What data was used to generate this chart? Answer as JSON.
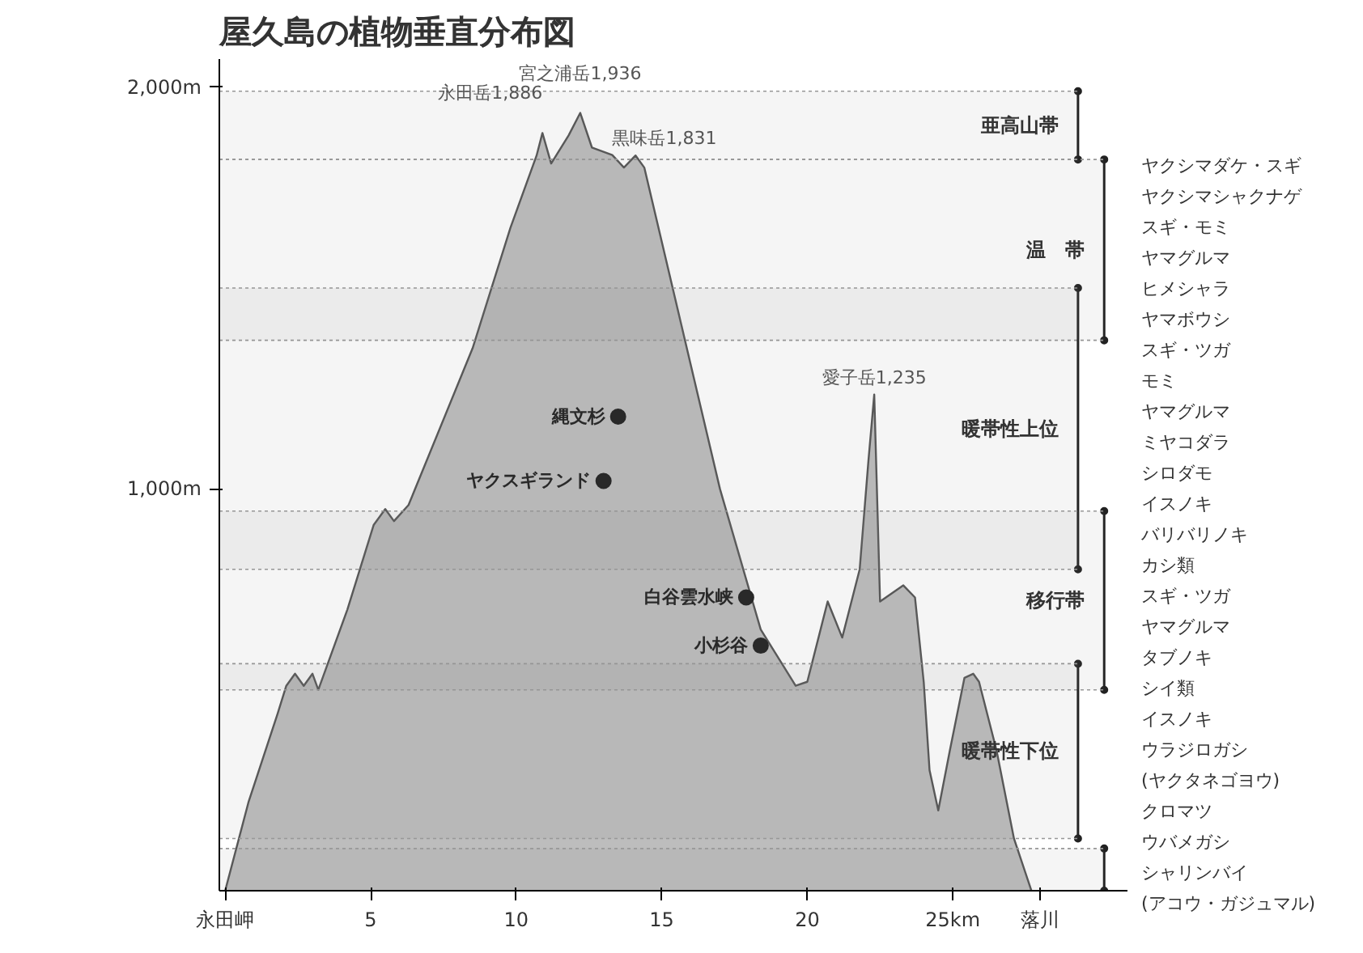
{
  "chart_data": {
    "type": "area",
    "title": "屋久島の植物垂直分布図",
    "xlim": [
      -0.2,
      31.0
    ],
    "ylim": [
      0,
      2070
    ],
    "xticks": [
      {
        "value": 0,
        "label": "永田岬"
      },
      5,
      10,
      15,
      20,
      {
        "value": 25,
        "label": "25km"
      },
      {
        "value": 28,
        "label": "落川"
      }
    ],
    "yticks": [
      {
        "value": 1000,
        "label": "1,000m"
      },
      {
        "value": 2000,
        "label": "2,000m"
      }
    ],
    "grid": false,
    "series": [
      {
        "color": "#bdbdbd",
        "x": [
          0,
          0.8,
          1.8,
          2.1,
          2.4,
          2.7,
          3.0,
          3.2,
          4.2,
          5.1,
          5.5,
          5.8,
          6.3,
          8.5,
          9.8,
          10.7,
          10.9,
          11.2,
          11.8,
          12.2,
          12.6,
          13.3,
          13.7,
          14.1,
          14.4,
          17.0,
          18.4,
          19.6,
          20.0,
          20.7,
          21.2,
          21.8,
          22.1,
          22.3,
          22.5,
          22.9,
          23.3,
          23.7,
          24.0,
          24.2,
          24.5,
          24.9,
          25.4,
          25.7,
          25.9,
          26.5,
          27.1,
          27.7
        ],
        "values": [
          0,
          220,
          440,
          510,
          540,
          510,
          540,
          500,
          700,
          910,
          950,
          920,
          960,
          1350,
          1650,
          1830,
          1886,
          1810,
          1880,
          1936,
          1850,
          1831,
          1800,
          1830,
          1800,
          1000,
          650,
          510,
          520,
          720,
          630,
          800,
          1070,
          1235,
          720,
          740,
          760,
          730,
          520,
          300,
          200,
          350,
          530,
          540,
          520,
          350,
          130,
          0
        ]
      },
      {
        "type": "scatter",
        "marker": "circle",
        "name": "縄文杉",
        "color": "#222222",
        "x": [
          13.5
        ],
        "values": [
          1180
        ]
      },
      {
        "type": "scatter",
        "marker": "circle",
        "name": "ヤクスギランド",
        "color": "#222222",
        "x": [
          13.0
        ],
        "values": [
          1020
        ]
      },
      {
        "type": "scatter",
        "marker": "circle",
        "name": "白谷雲水峡",
        "color": "#222222",
        "x": [
          17.9
        ],
        "values": [
          730
        ]
      },
      {
        "type": "scatter",
        "marker": "circle",
        "name": "小杉谷",
        "color": "#222222",
        "x": [
          18.4
        ],
        "values": [
          610
        ]
      }
    ],
    "bands": [
      {
        "axis": "y",
        "from": 1820,
        "to": 1990,
        "label": "亜高山帯"
      },
      {
        "axis": "y",
        "from": 1370,
        "to": 1820,
        "label": "温　帯"
      },
      {
        "axis": "y",
        "from": 800,
        "to": 1500,
        "label": "暖帯性上位"
      },
      {
        "axis": "y",
        "from": 500,
        "to": 945,
        "label": "移行帯"
      },
      {
        "axis": "y",
        "from": 130,
        "to": 565,
        "label": "暖帯性下位"
      },
      {
        "axis": "y",
        "from": 0,
        "to": 105
      }
    ],
    "annotations": [
      {
        "text": "永田岳1,886",
        "x": 10.9,
        "y": 1886
      },
      {
        "text": "宮之浦岳1,936",
        "x": 12.2,
        "y": 1936
      },
      {
        "text": "黒味岳1,831",
        "x": 13.3,
        "y": 1831
      },
      {
        "text": "愛子岳1,235",
        "x": 22.3,
        "y": 1235
      },
      "ヤクシマダケ・スギ",
      "ヤクシマシャクナゲ",
      "スギ・モミ",
      "ヤマグルマ",
      "ヒメシャラ",
      "ヤマボウシ",
      "スギ・ツガ",
      "モミ",
      "ヤマグルマ",
      "ミヤコダラ",
      "シロダモ",
      "イスノキ",
      "バリバリノキ",
      "カシ類",
      "スギ・ツガ",
      "ヤマグルマ",
      "タブノキ",
      "シイ類",
      "イスノキ",
      "ウラジロガシ",
      "(ヤクタネゴヨウ)",
      "クロマツ",
      "ウバメガシ",
      "シャリンバイ",
      "(アコウ・ガジュマル)"
    ]
  }
}
